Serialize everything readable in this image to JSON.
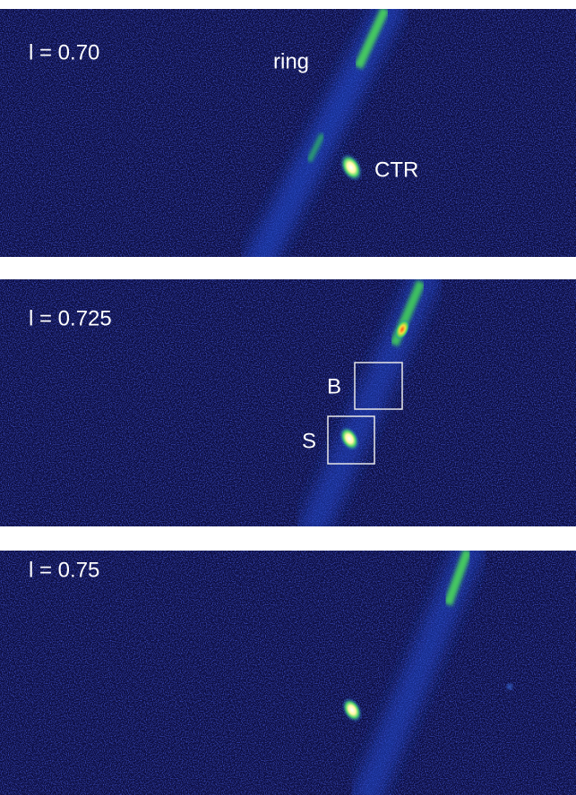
{
  "panels": [
    {
      "label": "l = 0.70",
      "annotations": [
        "ring",
        "CTR"
      ]
    },
    {
      "label": "l = 0.725",
      "annotations": [
        "B",
        "S"
      ]
    },
    {
      "label": "l = 0.75",
      "annotations": []
    }
  ]
}
